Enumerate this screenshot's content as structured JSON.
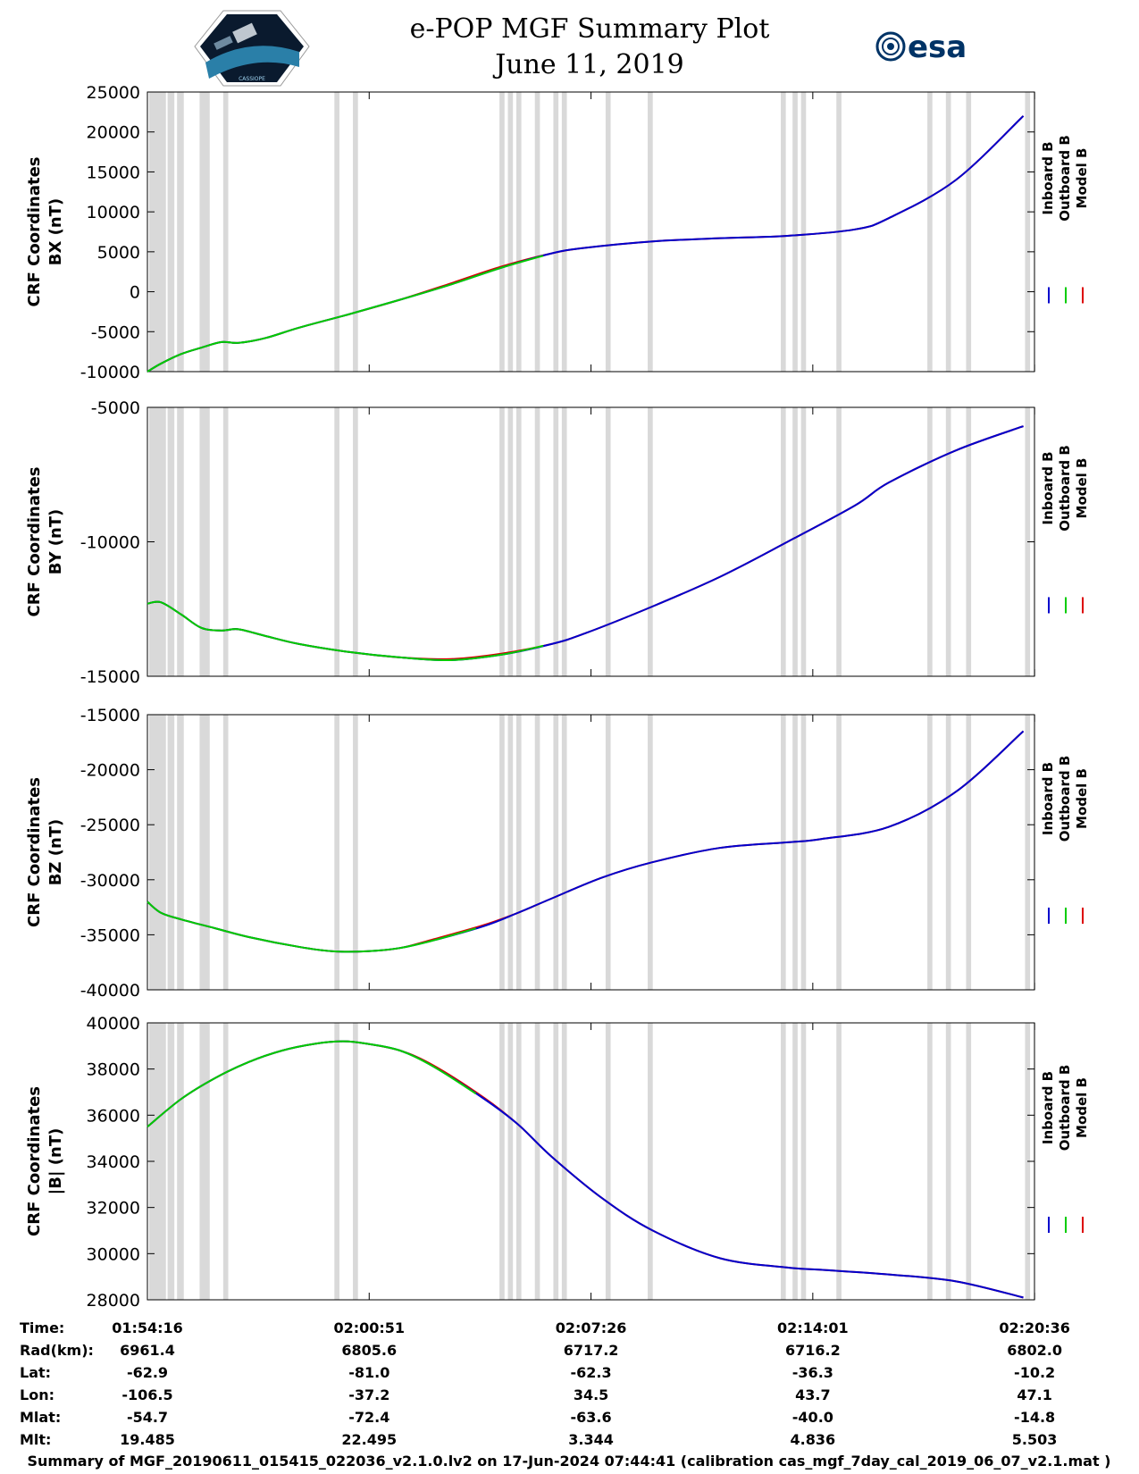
{
  "header": {
    "title_line1": "e-POP MGF Summary Plot",
    "title_line2": "June 11, 2019",
    "logo_left_text": "CASSIOPE",
    "logo_right_text": "esa"
  },
  "colors": {
    "inboard": "#0000cc",
    "outboard": "#00cc00",
    "model": "#dd0000",
    "gap_band": "#d9d9d9"
  },
  "legend": {
    "inboard": "Inboard B",
    "outboard": "Outboard B",
    "model": "Model B"
  },
  "chart_data": [
    {
      "type": "line",
      "panel": "bx",
      "ylabel_line1": "CRF Coordinates",
      "ylabel_line2": "BX (nT)",
      "ylim": [
        -10000,
        25000
      ],
      "yticks": [
        25000,
        20000,
        15000,
        10000,
        5000,
        0,
        -5000,
        -10000
      ],
      "x_minutes": [
        0,
        0.4,
        1.0,
        1.6,
        2.2,
        2.7,
        3.5,
        4.5,
        6.0,
        7.5,
        9.0,
        10.5,
        12.0,
        13.0,
        15.0,
        17.0,
        19.0,
        21.0,
        22.0,
        24.0,
        26.0
      ],
      "y_values": [
        -10000,
        -9000,
        -7800,
        -7000,
        -6300,
        -6400,
        -5800,
        -4500,
        -2800,
        -1000,
        900,
        3000,
        4800,
        5500,
        6300,
        6700,
        7000,
        7800,
        9200,
        14000,
        22000
      ],
      "green_end_minutes": 11.75
    },
    {
      "type": "line",
      "panel": "by",
      "ylabel_line1": "CRF Coordinates",
      "ylabel_line2": "BY (nT)",
      "ylim": [
        -15000,
        -5000
      ],
      "yticks": [
        -5000,
        -10000,
        -15000
      ],
      "x_minutes": [
        0,
        0.4,
        1.0,
        1.6,
        2.2,
        2.7,
        3.5,
        4.5,
        6.0,
        7.5,
        9.0,
        10.5,
        12.0,
        13.0,
        15.0,
        17.0,
        19.0,
        21.0,
        22.0,
        24.0,
        26.0
      ],
      "y_values": [
        -12300,
        -12250,
        -12700,
        -13200,
        -13300,
        -13250,
        -13500,
        -13800,
        -14100,
        -14300,
        -14400,
        -14200,
        -13800,
        -13400,
        -12400,
        -11300,
        -10000,
        -8650,
        -7800,
        -6600,
        -5700
      ],
      "green_end_minutes": 11.75
    },
    {
      "type": "line",
      "panel": "bz",
      "ylabel_line1": "CRF Coordinates",
      "ylabel_line2": "BZ (nT)",
      "ylim": [
        -40000,
        -15000
      ],
      "yticks": [
        -15000,
        -20000,
        -25000,
        -30000,
        -35000,
        -40000
      ],
      "x_minutes": [
        0,
        0.4,
        1.0,
        2.0,
        3.0,
        4.5,
        5.5,
        6.5,
        7.5,
        8.5,
        10.0,
        11.0,
        12.0,
        13.5,
        15.0,
        17.0,
        19.0,
        20.0,
        22.0,
        24.0,
        26.0
      ],
      "y_values": [
        -32000,
        -33000,
        -33600,
        -34400,
        -35200,
        -36100,
        -36500,
        -36500,
        -36200,
        -35500,
        -34200,
        -33000,
        -31700,
        -29800,
        -28400,
        -27100,
        -26600,
        -26300,
        -25200,
        -22000,
        -16500
      ],
      "green_end_minutes": 9.75
    },
    {
      "type": "line",
      "panel": "bmag",
      "ylabel_line1": "CRF Coordinates",
      "ylabel_line2": "|B| (nT)",
      "ylim": [
        28000,
        40000
      ],
      "yticks": [
        40000,
        38000,
        36000,
        34000,
        32000,
        30000,
        28000
      ],
      "x_minutes": [
        0,
        1.0,
        2.0,
        3.0,
        4.0,
        5.0,
        5.8,
        6.5,
        7.5,
        8.5,
        10.0,
        11.0,
        12.0,
        13.5,
        15.0,
        17.0,
        19.0,
        20.0,
        22.0,
        24.0,
        26.0
      ],
      "y_values": [
        35500,
        36700,
        37600,
        38300,
        38800,
        39100,
        39200,
        39100,
        38800,
        38100,
        36700,
        35600,
        34200,
        32400,
        31000,
        29800,
        29400,
        29300,
        29100,
        28800,
        28100
      ],
      "green_end_minutes": 9.75
    }
  ],
  "x_axis": {
    "range_minutes": [
      0,
      26.33
    ],
    "tick_minutes": [
      0,
      6.583,
      13.167,
      19.75,
      26.333
    ]
  },
  "gap_bands_minutes": [
    [
      0.05,
      0.55
    ],
    [
      0.6,
      0.8
    ],
    [
      0.88,
      1.08
    ],
    [
      1.55,
      1.85
    ],
    [
      2.25,
      2.4
    ],
    [
      5.55,
      5.7
    ],
    [
      6.1,
      6.25
    ],
    [
      10.45,
      10.6
    ],
    [
      10.7,
      10.85
    ],
    [
      10.95,
      11.1
    ],
    [
      11.5,
      11.65
    ],
    [
      12.05,
      12.2
    ],
    [
      12.3,
      12.45
    ],
    [
      13.6,
      13.75
    ],
    [
      14.85,
      15.0
    ],
    [
      18.8,
      18.95
    ],
    [
      19.15,
      19.3
    ],
    [
      19.4,
      19.55
    ],
    [
      20.45,
      20.6
    ],
    [
      23.15,
      23.3
    ],
    [
      23.7,
      23.85
    ],
    [
      24.3,
      24.45
    ],
    [
      26.05,
      26.2
    ]
  ],
  "info_table": {
    "row_labels": [
      "Time:",
      "Rad(km):",
      "Lat:",
      "Lon:",
      "Mlat:",
      "Mlt:"
    ],
    "columns": [
      [
        "01:54:16",
        "6961.4",
        "-62.9",
        "-106.5",
        "-54.7",
        "19.485"
      ],
      [
        "02:00:51",
        "6805.6",
        "-81.0",
        "-37.2",
        "-72.4",
        "22.495"
      ],
      [
        "02:07:26",
        "6717.2",
        "-62.3",
        "34.5",
        "-63.6",
        "3.344"
      ],
      [
        "02:14:01",
        "6716.2",
        "-36.3",
        "43.7",
        "-40.0",
        "4.836"
      ],
      [
        "02:20:36",
        "6802.0",
        "-10.2",
        "47.1",
        "-14.8",
        "5.503"
      ]
    ]
  },
  "footer": "Summary of MGF_20190611_015415_022036_v2.1.0.lv2 on 17-Jun-2024 07:44:41 (calibration cas_mgf_7day_cal_2019_06_07_v2.1.mat )"
}
